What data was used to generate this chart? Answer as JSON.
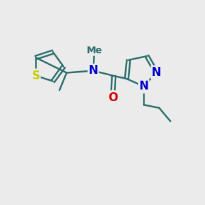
{
  "bg_color": "#ebebeb",
  "bond_color": "#2d6e6e",
  "bond_lw": 1.8,
  "S_color": "#cccc00",
  "N_color": "#0000cc",
  "O_color": "#cc0000",
  "font_size_atom": 11,
  "figsize": [
    3.0,
    3.0
  ],
  "dpi": 100,
  "xlim": [
    0,
    10
  ],
  "ylim": [
    0,
    10
  ]
}
